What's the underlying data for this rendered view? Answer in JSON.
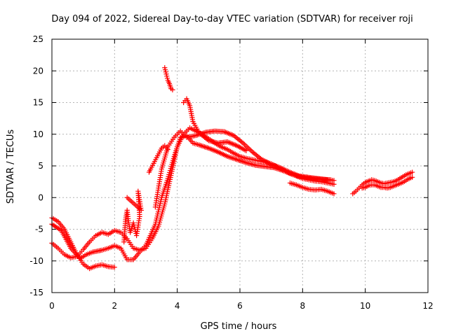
{
  "chart_data": {
    "type": "scatter",
    "title": "Day 094 of 2022, Sidereal Day-to-day VTEC variation (SDTVAR) for receiver roji",
    "xlabel": "GPS time / hours",
    "ylabel": "SDTVAR / TECUs",
    "xlim": [
      0,
      12
    ],
    "ylim": [
      -15,
      25
    ],
    "xticks": [
      "0",
      "2",
      "4",
      "6",
      "8",
      "10",
      "12"
    ],
    "yticks": [
      "-15",
      "-10",
      "-5",
      "0",
      "5",
      "10",
      "15",
      "20",
      "25"
    ],
    "grid": true,
    "marker": "+",
    "color": "#ff0000",
    "series": [
      {
        "name": "trace-1",
        "points": [
          [
            0.0,
            -3.2
          ],
          [
            0.2,
            -3.8
          ],
          [
            0.4,
            -5.0
          ],
          [
            0.6,
            -7.0
          ],
          [
            0.8,
            -9.0
          ],
          [
            1.0,
            -10.5
          ],
          [
            1.2,
            -11.2
          ],
          [
            1.4,
            -10.8
          ],
          [
            1.6,
            -10.6
          ],
          [
            1.8,
            -10.9
          ],
          [
            2.0,
            -11.0
          ]
        ]
      },
      {
        "name": "trace-2",
        "points": [
          [
            0.0,
            -7.2
          ],
          [
            0.2,
            -8.0
          ],
          [
            0.4,
            -9.0
          ],
          [
            0.6,
            -9.5
          ],
          [
            0.8,
            -9.3
          ],
          [
            1.0,
            -8.2
          ],
          [
            1.2,
            -7.0
          ],
          [
            1.4,
            -6.0
          ],
          [
            1.6,
            -5.5
          ],
          [
            1.8,
            -5.8
          ],
          [
            2.0,
            -5.2
          ],
          [
            2.2,
            -5.5
          ],
          [
            2.4,
            -6.5
          ],
          [
            2.6,
            -8.0
          ],
          [
            2.8,
            -8.3
          ],
          [
            3.0,
            -8.0
          ],
          [
            3.2,
            -6.5
          ],
          [
            3.4,
            -4.5
          ],
          [
            3.6,
            -1.0
          ],
          [
            3.8,
            3.5
          ],
          [
            4.0,
            8.0
          ],
          [
            4.2,
            10.0
          ],
          [
            4.4,
            11.0
          ],
          [
            4.6,
            10.5
          ],
          [
            4.8,
            10.0
          ],
          [
            5.0,
            9.3
          ],
          [
            5.2,
            8.6
          ],
          [
            5.4,
            8.0
          ],
          [
            5.6,
            7.6
          ],
          [
            5.8,
            7.0
          ],
          [
            6.0,
            6.5
          ],
          [
            6.2,
            6.2
          ],
          [
            6.4,
            6.0
          ],
          [
            6.6,
            5.8
          ],
          [
            6.8,
            5.6
          ],
          [
            7.0,
            5.3
          ],
          [
            7.2,
            4.8
          ],
          [
            7.4,
            4.3
          ],
          [
            7.6,
            3.8
          ],
          [
            7.8,
            3.4
          ],
          [
            8.0,
            3.0
          ],
          [
            8.2,
            2.8
          ],
          [
            8.4,
            2.6
          ],
          [
            8.6,
            2.5
          ],
          [
            8.8,
            2.3
          ],
          [
            9.0,
            2.1
          ]
        ]
      },
      {
        "name": "trace-3",
        "points": [
          [
            0.0,
            -4.2
          ],
          [
            0.3,
            -5.2
          ],
          [
            0.6,
            -8.0
          ],
          [
            0.9,
            -9.6
          ],
          [
            1.1,
            -9.0
          ],
          [
            1.3,
            -8.6
          ],
          [
            1.6,
            -8.3
          ],
          [
            1.8,
            -8.0
          ],
          [
            2.0,
            -7.6
          ],
          [
            2.2,
            -8.0
          ],
          [
            2.4,
            -9.8
          ],
          [
            2.6,
            -9.8
          ],
          [
            2.8,
            -8.6
          ],
          [
            3.0,
            -7.5
          ],
          [
            3.3,
            -4.2
          ],
          [
            3.5,
            0.0
          ],
          [
            3.7,
            3.0
          ],
          [
            3.9,
            6.5
          ],
          [
            4.1,
            9.5
          ],
          [
            4.3,
            9.8
          ],
          [
            4.5,
            8.6
          ],
          [
            4.7,
            8.3
          ],
          [
            5.0,
            7.8
          ],
          [
            5.3,
            7.2
          ],
          [
            5.6,
            6.5
          ],
          [
            5.9,
            6.0
          ],
          [
            6.2,
            5.5
          ],
          [
            6.5,
            5.1
          ],
          [
            6.8,
            4.9
          ],
          [
            7.1,
            4.7
          ],
          [
            7.4,
            4.2
          ],
          [
            7.7,
            3.6
          ],
          [
            8.0,
            3.2
          ],
          [
            8.3,
            3.0
          ],
          [
            8.6,
            2.9
          ],
          [
            8.9,
            2.8
          ]
        ]
      },
      {
        "name": "trace-4",
        "points": [
          [
            3.3,
            -1.5
          ],
          [
            3.5,
            4.5
          ],
          [
            3.7,
            8.0
          ],
          [
            3.9,
            9.5
          ],
          [
            4.1,
            10.5
          ],
          [
            4.3,
            9.5
          ],
          [
            4.6,
            9.8
          ],
          [
            4.9,
            10.3
          ],
          [
            5.2,
            10.5
          ],
          [
            5.5,
            10.4
          ],
          [
            5.8,
            9.8
          ],
          [
            6.1,
            8.6
          ],
          [
            6.4,
            7.2
          ],
          [
            6.7,
            6.0
          ],
          [
            7.0,
            5.3
          ],
          [
            7.3,
            4.7
          ],
          [
            7.6,
            4.0
          ],
          [
            7.9,
            3.4
          ],
          [
            8.2,
            3.2
          ],
          [
            8.5,
            3.0
          ],
          [
            8.8,
            2.8
          ],
          [
            9.0,
            2.7
          ]
        ]
      },
      {
        "name": "trace-5",
        "points": [
          [
            4.2,
            15.0
          ],
          [
            4.3,
            15.6
          ],
          [
            4.4,
            14.5
          ],
          [
            4.5,
            12.0
          ],
          [
            4.7,
            10.2
          ],
          [
            5.0,
            9.0
          ],
          [
            5.3,
            8.6
          ],
          [
            5.6,
            8.8
          ],
          [
            5.9,
            8.2
          ],
          [
            6.2,
            7.4
          ]
        ]
      },
      {
        "name": "trace-6",
        "points": [
          [
            3.6,
            20.5
          ],
          [
            3.65,
            19.5
          ],
          [
            3.7,
            18.5
          ],
          [
            3.75,
            18.0
          ],
          [
            3.8,
            17.2
          ],
          [
            3.85,
            17.0
          ]
        ]
      },
      {
        "name": "trace-7",
        "points": [
          [
            2.3,
            -7.0
          ],
          [
            2.35,
            -3.5
          ],
          [
            2.4,
            -2.0
          ],
          [
            2.45,
            -4.0
          ],
          [
            2.5,
            -5.5
          ],
          [
            2.6,
            -4.0
          ],
          [
            2.7,
            -6.0
          ],
          [
            2.8,
            -3.0
          ],
          [
            2.75,
            1.0
          ],
          [
            2.85,
            -2.0
          ],
          [
            2.4,
            0.0
          ]
        ]
      },
      {
        "name": "trace-8",
        "points": [
          [
            3.1,
            4.0
          ],
          [
            3.15,
            4.5
          ],
          [
            3.5,
            7.8
          ],
          [
            3.55,
            8.0
          ],
          [
            3.6,
            8.2
          ],
          [
            3.7,
            7.6
          ]
        ]
      },
      {
        "name": "trace-9",
        "points": [
          [
            7.6,
            2.3
          ],
          [
            7.8,
            2.0
          ],
          [
            8.0,
            1.6
          ],
          [
            8.2,
            1.3
          ],
          [
            8.4,
            1.2
          ],
          [
            8.6,
            1.3
          ],
          [
            8.8,
            1.0
          ],
          [
            9.0,
            0.6
          ]
        ]
      },
      {
        "name": "trace-10",
        "points": [
          [
            9.6,
            0.6
          ],
          [
            9.7,
            1.0
          ],
          [
            9.8,
            1.5
          ],
          [
            9.9,
            2.0
          ],
          [
            10.0,
            2.4
          ],
          [
            10.1,
            2.6
          ],
          [
            10.2,
            2.8
          ],
          [
            10.3,
            2.7
          ],
          [
            10.4,
            2.5
          ],
          [
            10.5,
            2.3
          ],
          [
            10.6,
            2.2
          ],
          [
            10.7,
            2.3
          ],
          [
            10.8,
            2.4
          ],
          [
            10.9,
            2.5
          ],
          [
            11.0,
            2.7
          ],
          [
            11.1,
            3.0
          ],
          [
            11.2,
            3.3
          ],
          [
            11.3,
            3.6
          ],
          [
            11.4,
            3.8
          ],
          [
            11.5,
            4.0
          ]
        ]
      },
      {
        "name": "trace-11",
        "points": [
          [
            9.9,
            1.5
          ],
          [
            10.0,
            1.6
          ],
          [
            10.1,
            1.9
          ],
          [
            10.2,
            2.0
          ],
          [
            10.3,
            2.0
          ],
          [
            10.4,
            1.8
          ],
          [
            10.5,
            1.6
          ],
          [
            10.6,
            1.6
          ],
          [
            10.7,
            1.5
          ],
          [
            10.8,
            1.6
          ],
          [
            10.9,
            1.8
          ],
          [
            11.0,
            2.0
          ],
          [
            11.1,
            2.2
          ],
          [
            11.2,
            2.4
          ],
          [
            11.3,
            2.7
          ],
          [
            11.4,
            3.0
          ],
          [
            11.5,
            3.2
          ]
        ]
      }
    ]
  }
}
